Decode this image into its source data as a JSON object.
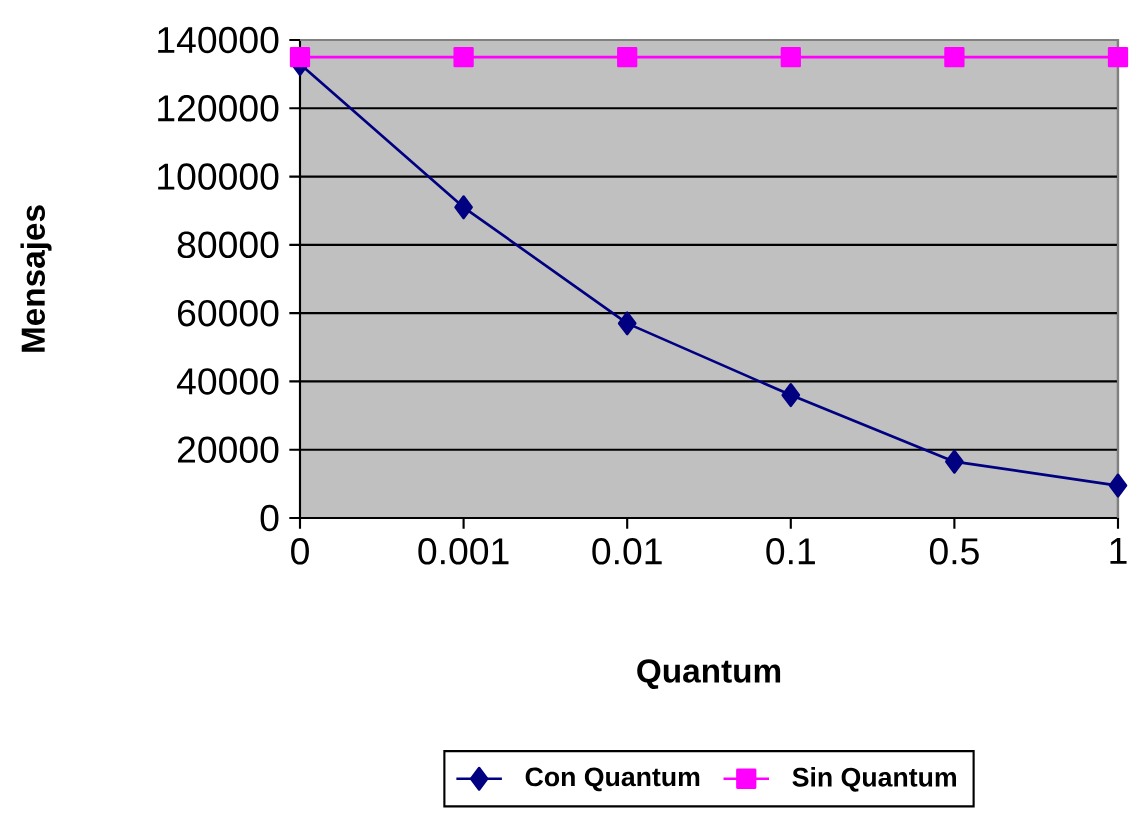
{
  "chart_data": {
    "type": "line",
    "xlabel": "Quantum",
    "ylabel": "Mensajes",
    "categories": [
      "0",
      "0.001",
      "0.01",
      "0.1",
      "0.5",
      "1"
    ],
    "series": [
      {
        "name": "Con Quantum",
        "color": "#000080",
        "marker": "diamond",
        "values": [
          133000,
          91000,
          57000,
          36000,
          16500,
          9500
        ]
      },
      {
        "name": "Sin Quantum",
        "color": "#ff00ff",
        "marker": "square",
        "values": [
          135000,
          135000,
          135000,
          135000,
          135000,
          135000
        ]
      }
    ],
    "ylim": [
      0,
      140000
    ],
    "yticks": [
      0,
      20000,
      40000,
      60000,
      80000,
      100000,
      120000,
      140000
    ],
    "grid": "y",
    "legend": "bottom"
  }
}
